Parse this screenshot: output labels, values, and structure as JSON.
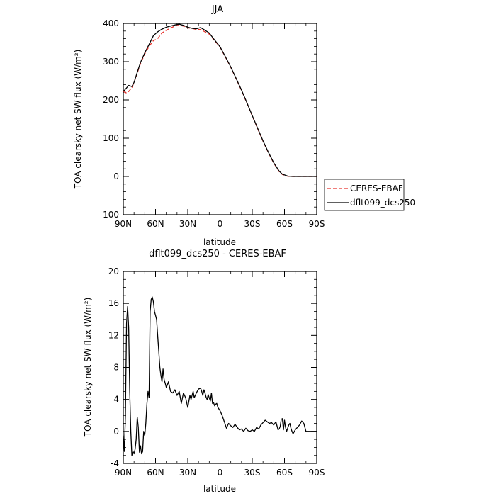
{
  "chart_data": [
    {
      "type": "line",
      "title": "JJA",
      "xlabel": "latitude",
      "ylabel": "TOA clearsky net SW flux (W/m²)",
      "x_ticks": [
        "90N",
        "60N",
        "30N",
        "0",
        "30S",
        "60S",
        "90S"
      ],
      "x_tick_values": [
        90,
        60,
        30,
        0,
        -30,
        -60,
        -90
      ],
      "xlim": [
        90,
        -90
      ],
      "ylim": [
        -100,
        400
      ],
      "y_ticks": [
        -100,
        0,
        100,
        200,
        300,
        400
      ],
      "legend": {
        "placement": "right, outside plot"
      },
      "series": [
        {
          "name": "CERES-EBAF",
          "color": "#e8322c",
          "style": "dashed",
          "x": [
            90,
            87,
            85,
            82,
            80,
            77,
            74,
            70,
            66,
            62,
            58,
            54,
            50,
            46,
            42,
            38,
            34,
            30,
            26,
            22,
            18,
            14,
            10,
            6,
            2,
            0,
            -5,
            -10,
            -15,
            -20,
            -25,
            -30,
            -35,
            -40,
            -45,
            -50,
            -55,
            -58,
            -61,
            -63,
            -65,
            -68,
            -72,
            -76,
            -80,
            -85,
            -90
          ],
          "y": [
            222,
            218,
            222,
            232,
            245,
            270,
            295,
            320,
            340,
            355,
            360,
            375,
            382,
            388,
            393,
            395,
            393,
            388,
            387,
            384,
            384,
            378,
            372,
            358,
            345,
            338,
            312,
            285,
            255,
            225,
            192,
            158,
            125,
            92,
            62,
            35,
            13,
            5,
            2,
            0.5,
            0.2,
            0,
            0,
            0,
            0,
            0,
            0
          ]
        },
        {
          "name": "dflt099_dcs250",
          "color": "#000000",
          "style": "solid",
          "x": [
            90,
            88,
            85,
            82,
            80,
            77,
            74,
            70,
            66,
            62,
            58,
            54,
            50,
            46,
            42,
            38,
            34,
            30,
            26,
            22,
            18,
            14,
            10,
            6,
            2,
            0,
            -5,
            -10,
            -15,
            -20,
            -25,
            -30,
            -35,
            -40,
            -45,
            -50,
            -55,
            -58,
            -61,
            -63,
            -65,
            -68,
            -72,
            -76,
            -80,
            -85,
            -90
          ],
          "y": [
            222,
            228,
            238,
            235,
            246,
            272,
            298,
            323,
            345,
            368,
            378,
            385,
            390,
            393,
            396,
            398,
            395,
            390,
            387,
            386,
            389,
            382,
            375,
            360,
            346,
            339,
            313,
            286,
            256,
            226,
            193,
            159,
            126,
            93,
            63,
            36,
            14,
            6,
            3,
            1,
            0.5,
            0,
            0,
            0,
            0,
            0,
            0
          ]
        }
      ]
    },
    {
      "type": "line",
      "title": "dflt099_dcs250 - CERES-EBAF",
      "xlabel": "latitude",
      "ylabel": "TOA clearsky net SW flux (W/m²)",
      "x_ticks": [
        "90N",
        "60N",
        "30N",
        "0",
        "30S",
        "60S",
        "90S"
      ],
      "x_tick_values": [
        90,
        60,
        30,
        0,
        -30,
        -60,
        -90
      ],
      "xlim": [
        90,
        -90
      ],
      "ylim": [
        -4,
        20
      ],
      "y_ticks": [
        -4,
        0,
        4,
        8,
        12,
        16,
        20
      ],
      "series": [
        {
          "color": "#000000",
          "style": "solid",
          "x": [
            90,
            89,
            88,
            87,
            86,
            85,
            84,
            83,
            82,
            81,
            80,
            79,
            78,
            77,
            76,
            75,
            74,
            73,
            72,
            71,
            70,
            69,
            68,
            67,
            66,
            65,
            64,
            63,
            62,
            61,
            60,
            59,
            58,
            57,
            56,
            55,
            54,
            53,
            52,
            51,
            50,
            49,
            48,
            46,
            44,
            42,
            40,
            38,
            36,
            34,
            32,
            30,
            28,
            27,
            26,
            25,
            24,
            22,
            20,
            18,
            17,
            16,
            15,
            14,
            13,
            12,
            11,
            10,
            9,
            8,
            7,
            6,
            5,
            4,
            3,
            2,
            0,
            -2,
            -4,
            -6,
            -8,
            -10,
            -12,
            -14,
            -16,
            -18,
            -20,
            -22,
            -24,
            -26,
            -28,
            -30,
            -32,
            -34,
            -36,
            -38,
            -40,
            -42,
            -44,
            -46,
            -48,
            -50,
            -52,
            -54,
            -55,
            -56,
            -57,
            -58,
            -59,
            -60,
            -61,
            -62,
            -63,
            -64,
            -65,
            -66,
            -67,
            -68,
            -70,
            -72,
            -74,
            -76,
            -78,
            -80,
            -82,
            -84,
            -86,
            -88,
            -90
          ],
          "y": [
            -0.5,
            -2.5,
            2,
            13.5,
            15.6,
            13,
            5,
            0,
            -3,
            -2.5,
            -2.8,
            -2.2,
            -1,
            1.8,
            0.5,
            -2.6,
            -1.8,
            -2.8,
            -2.5,
            0,
            -0.5,
            1,
            3.5,
            5,
            4.2,
            15,
            16.5,
            16.8,
            16.2,
            15,
            14.5,
            14,
            12,
            10,
            8,
            7,
            6.2,
            7.8,
            6.5,
            6,
            5.5,
            5.8,
            6.2,
            5,
            4.8,
            5.2,
            4.5,
            5,
            3.5,
            4.8,
            4.2,
            3,
            4.5,
            4,
            4.5,
            5,
            4.2,
            4.8,
            5.3,
            5.4,
            5,
            4.5,
            5.2,
            4.8,
            4.3,
            4,
            4.6,
            4.2,
            3.8,
            4.8,
            3.5,
            3.6,
            3.2,
            3.4,
            3.5,
            3.0,
            2.6,
            2.0,
            1.2,
            0.4,
            1.0,
            0.7,
            0.5,
            0.9,
            0.5,
            0.2,
            0.3,
            0.0,
            0.4,
            0.1,
            0.0,
            0.2,
            0.0,
            0.5,
            0.3,
            0.8,
            1.1,
            1.4,
            1.2,
            1.0,
            1.1,
            0.8,
            1.2,
            0.2,
            0.3,
            0.6,
            1.5,
            1.6,
            0.2,
            1.4,
            0.5,
            0.0,
            0.4,
            0.8,
            1.0,
            0.4,
            0.0,
            -0.3,
            0.2,
            0.5,
            0.8,
            1.3,
            1.0,
            0.0,
            0.0,
            0.0,
            0.0,
            0.0,
            0.0
          ]
        }
      ]
    }
  ]
}
